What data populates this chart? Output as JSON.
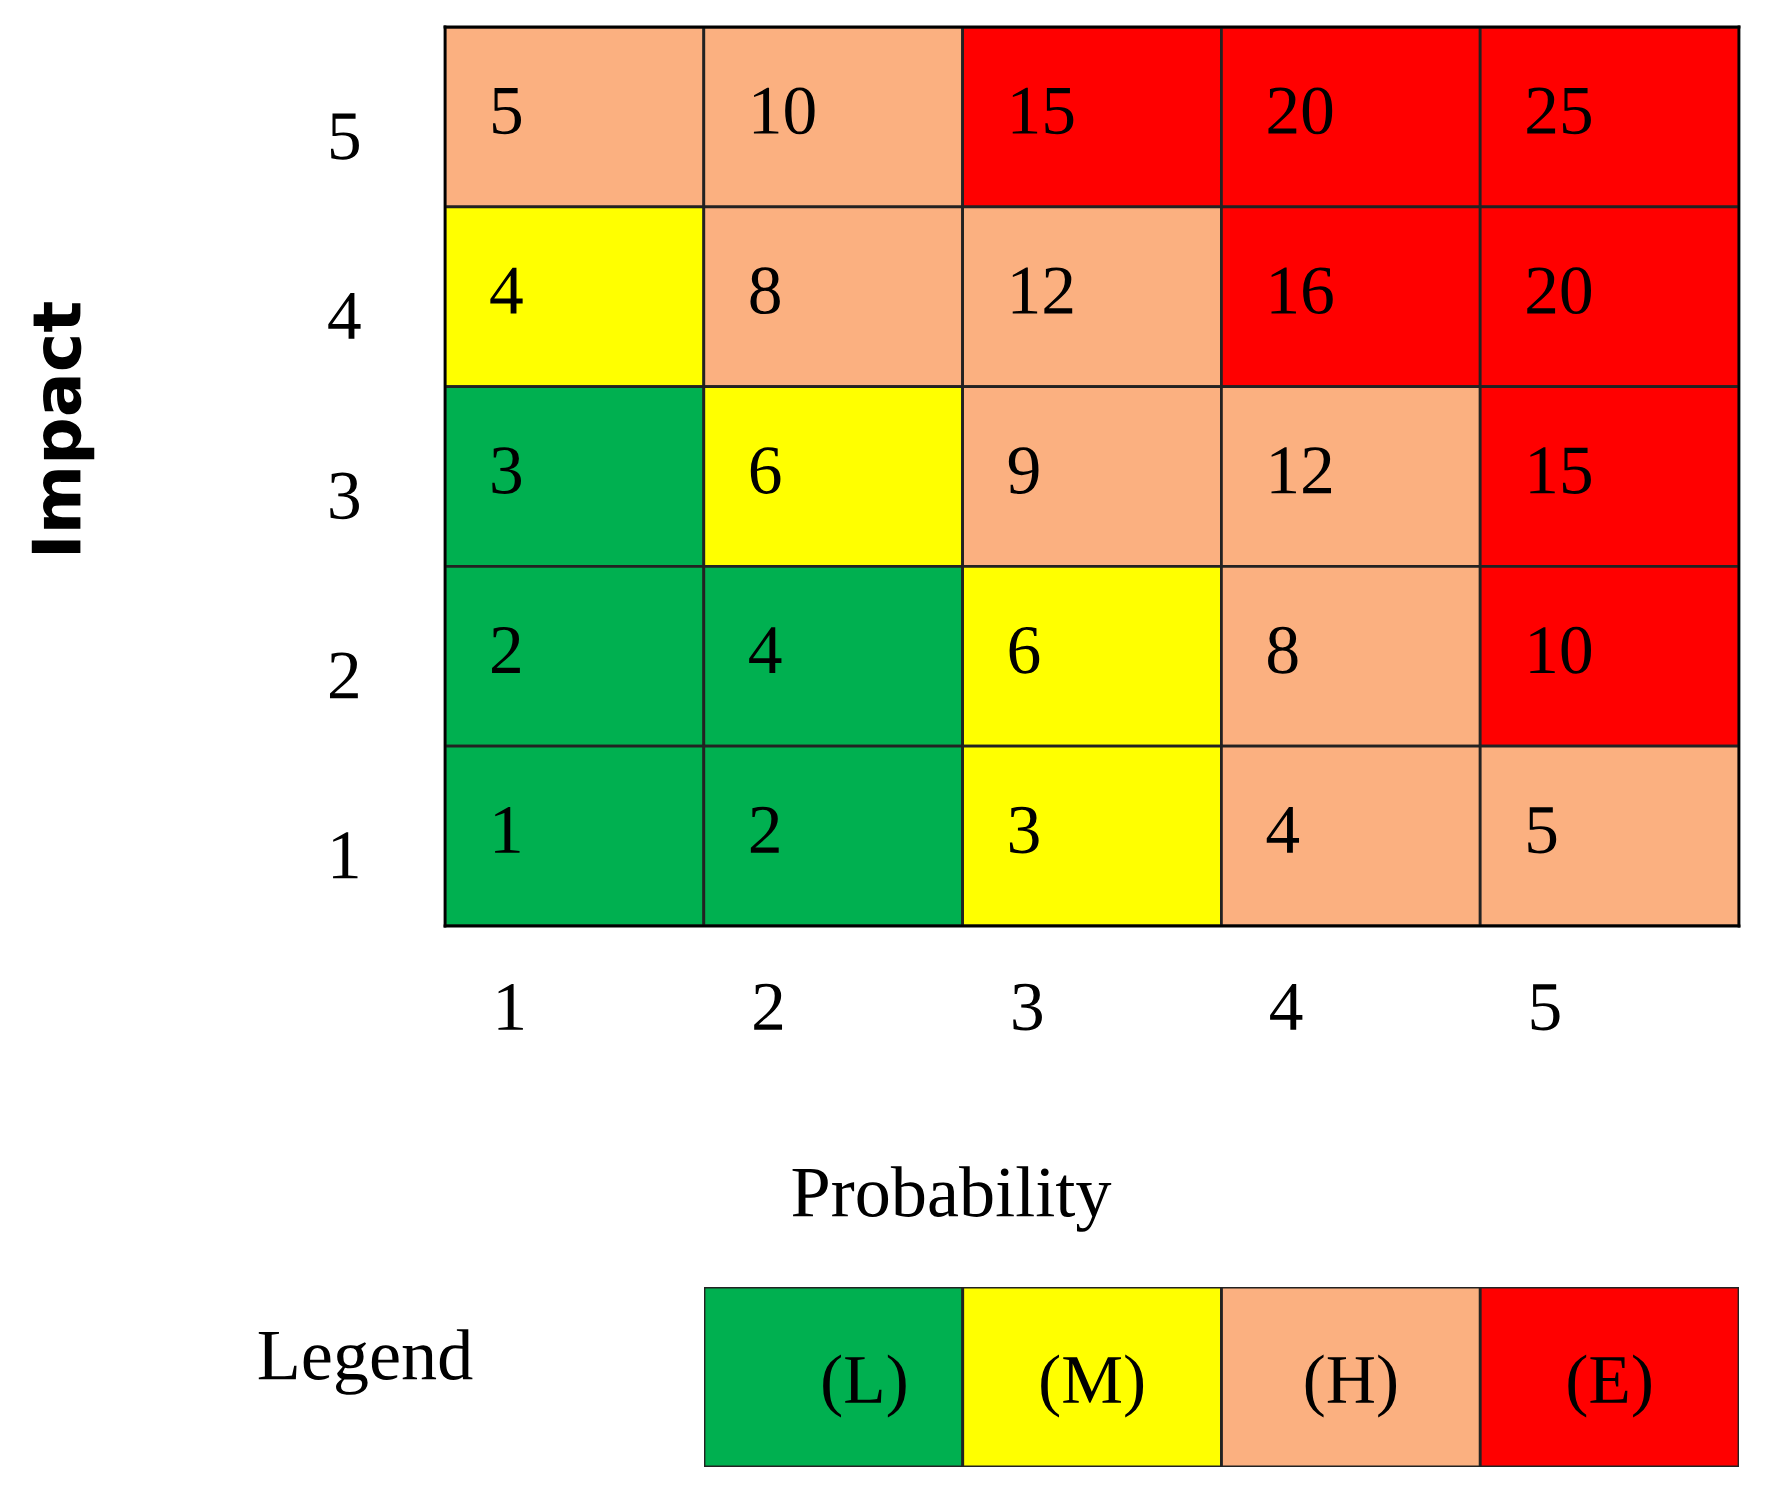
{
  "chart_data": [
    {
      "type": "heatmap",
      "xlabel": "Probability",
      "ylabel": "Impact",
      "categories": [
        "1",
        "2",
        "3",
        "4",
        "5"
      ],
      "y_categories": [
        "5",
        "4",
        "3",
        "2",
        "1"
      ],
      "cells": [
        [
          5,
          10,
          15,
          20,
          25
        ],
        [
          4,
          8,
          12,
          16,
          20
        ],
        [
          3,
          6,
          9,
          12,
          15
        ],
        [
          2,
          4,
          6,
          8,
          10
        ],
        [
          1,
          2,
          3,
          4,
          5
        ]
      ],
      "colors": [
        [
          "#fbb080",
          "#fbb080",
          "#ff0000",
          "#ff0000",
          "#ff0000"
        ],
        [
          "#ffff00",
          "#fbb080",
          "#fbb080",
          "#ff0000",
          "#ff0000"
        ],
        [
          "#00b050",
          "#ffff00",
          "#fbb080",
          "#fbb080",
          "#ff0000"
        ],
        [
          "#00b050",
          "#00b050",
          "#ffff00",
          "#fbb080",
          "#ff0000"
        ],
        [
          "#00b050",
          "#00b050",
          "#ffff00",
          "#fbb080",
          "#fbb080"
        ]
      ],
      "data_labels": true
    },
    {
      "type": "other",
      "title": "Legend",
      "categories": [
        "(L)",
        "(M)",
        "(H)",
        "(E)"
      ],
      "colors": [
        "#00b050",
        "#ffff00",
        "#fbb080",
        "#ff0000"
      ]
    }
  ]
}
